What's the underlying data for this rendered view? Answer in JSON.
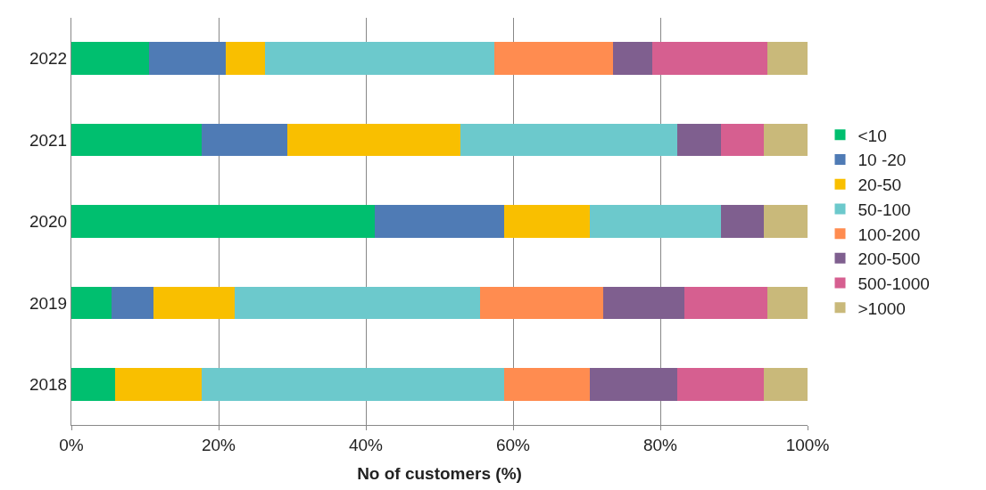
{
  "chart_data": {
    "type": "bar",
    "orientation": "horizontal",
    "stacked": true,
    "xlabel": "No of customers (%)",
    "categories": [
      "2022",
      "2021",
      "2020",
      "2019",
      "2018"
    ],
    "xlim": [
      0,
      100
    ],
    "xticks": [
      {
        "value": 0,
        "label": "0%"
      },
      {
        "value": 20,
        "label": "20%"
      },
      {
        "value": 40,
        "label": "40%"
      },
      {
        "value": 60,
        "label": "60%"
      },
      {
        "value": 80,
        "label": "80%"
      },
      {
        "value": 100,
        "label": "100%"
      }
    ],
    "grid": "x",
    "legend": "right",
    "series": [
      {
        "name": "<10",
        "color": "#00bf6f",
        "values": [
          10.5,
          17.7,
          41.2,
          5.5,
          5.9
        ]
      },
      {
        "name": "10 -20",
        "color": "#4f7bb5",
        "values": [
          10.5,
          11.6,
          17.6,
          5.7,
          0
        ]
      },
      {
        "name": "20-50",
        "color": "#f9bf00",
        "values": [
          5.3,
          23.6,
          11.6,
          11.0,
          11.8
        ]
      },
      {
        "name": "50-100",
        "color": "#6cc9cc",
        "values": [
          31.2,
          29.4,
          17.8,
          33.3,
          41.1
        ]
      },
      {
        "name": "100-200",
        "color": "#ff8c50",
        "values": [
          16.1,
          0,
          0,
          16.8,
          11.6
        ]
      },
      {
        "name": "200-500",
        "color": "#7f5f8f",
        "values": [
          5.3,
          5.9,
          5.9,
          11.0,
          11.9
        ]
      },
      {
        "name": "500-1000",
        "color": "#d65f90",
        "values": [
          15.7,
          5.9,
          0,
          11.2,
          11.8
        ]
      },
      {
        "name": ">1000",
        "color": "#c9b97a",
        "values": [
          5.4,
          5.9,
          5.9,
          5.5,
          5.9
        ]
      }
    ]
  }
}
